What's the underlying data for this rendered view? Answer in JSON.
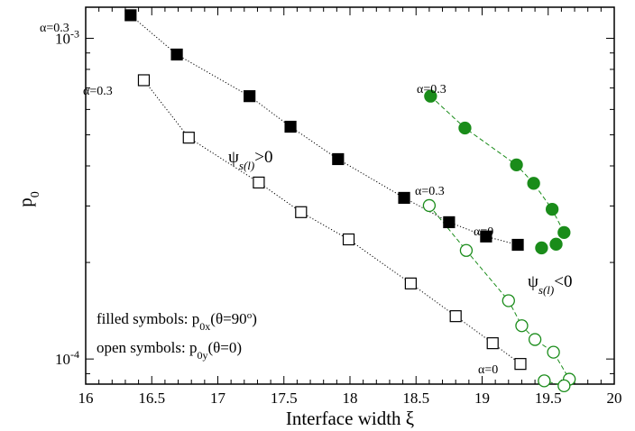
{
  "chart_data": {
    "type": "scatter",
    "xlabel": "Interface width ξ",
    "ylabel": "p",
    "ylabel_sub": "0",
    "xlim": [
      16,
      20
    ],
    "ylim": [
      8.35e-05,
      0.00125
    ],
    "yscale": "log",
    "xticks": [
      "16",
      "16.5",
      "17",
      "17.5",
      "18",
      "18.5",
      "19",
      "19.5",
      "20"
    ],
    "yticks": [
      {
        "base": "10",
        "exp": "-4",
        "value": 0.0001
      },
      {
        "base": "10",
        "exp": "-3",
        "value": 0.001
      }
    ],
    "series": [
      {
        "id": "black-filled",
        "color": "#000000",
        "marker": "square",
        "fill": "filled",
        "line": "dotted",
        "x": [
          16.34,
          16.69,
          17.24,
          17.55,
          17.91,
          18.41,
          18.75,
          19.03,
          19.27
        ],
        "y": [
          0.00118,
          0.00089,
          0.00066,
          0.00053,
          0.00042,
          0.000318,
          0.000267,
          0.000241,
          0.000227
        ]
      },
      {
        "id": "black-open",
        "color": "#000000",
        "marker": "square",
        "fill": "open",
        "line": "dotted",
        "x": [
          16.44,
          16.78,
          17.31,
          17.63,
          17.99,
          18.46,
          18.8,
          19.08,
          19.29
        ],
        "y": [
          0.00074,
          0.00049,
          0.000355,
          0.000287,
          0.000236,
          0.000172,
          0.000136,
          0.000112,
          9.65e-05
        ]
      },
      {
        "id": "green-filled",
        "color": "#1a8c1a",
        "marker": "circle",
        "fill": "filled",
        "line": "dashed",
        "x": [
          18.61,
          18.87,
          19.26,
          19.39,
          19.53,
          19.62,
          19.56,
          19.45
        ],
        "y": [
          0.00066,
          0.000525,
          0.000403,
          0.000353,
          0.000293,
          0.000248,
          0.000228,
          0.000222
        ]
      },
      {
        "id": "green-open",
        "color": "#1a8c1a",
        "marker": "circle",
        "fill": "open",
        "line": "dashed",
        "x": [
          18.6,
          18.88,
          19.2,
          19.3,
          19.4,
          19.54,
          19.66,
          19.62,
          19.47
        ],
        "y": [
          0.000301,
          0.000218,
          0.000152,
          0.000127,
          0.000115,
          0.000105,
          8.65e-05,
          8.25e-05,
          8.55e-05
        ]
      }
    ],
    "annotations": [
      {
        "id": "alpha-filled-black",
        "text": "α=0.3",
        "color": "#000000"
      },
      {
        "id": "alpha-open-black",
        "text": "α=0.3",
        "color": "#000000"
      },
      {
        "id": "alpha-filled-green",
        "text": "α=0.3",
        "color": "#1a8c1a"
      },
      {
        "id": "alpha-open-green",
        "text": "α=0.3",
        "color": "#1a8c1a"
      },
      {
        "id": "alpha-zero-upper",
        "text": "α=0",
        "color": "#1a1acc"
      },
      {
        "id": "alpha-zero-lower",
        "text": "α=0",
        "color": "#1a1acc"
      },
      {
        "id": "psi-positive",
        "psi": "ψ",
        "sub": "s(l)",
        "rest": ">0",
        "color": "#000000"
      },
      {
        "id": "psi-negative",
        "psi": "ψ",
        "sub": "s(l)",
        "rest": "<0",
        "color": "#1a8c1a"
      }
    ],
    "legend_notes": {
      "filled": {
        "lead": "filled symbols: p",
        "sub": "0x",
        "mid": "(θ=90",
        "sup": "o",
        "tail": ")"
      },
      "open": {
        "lead": "open symbols: p",
        "sub": "0y",
        "tail": "(θ=0)"
      }
    }
  }
}
